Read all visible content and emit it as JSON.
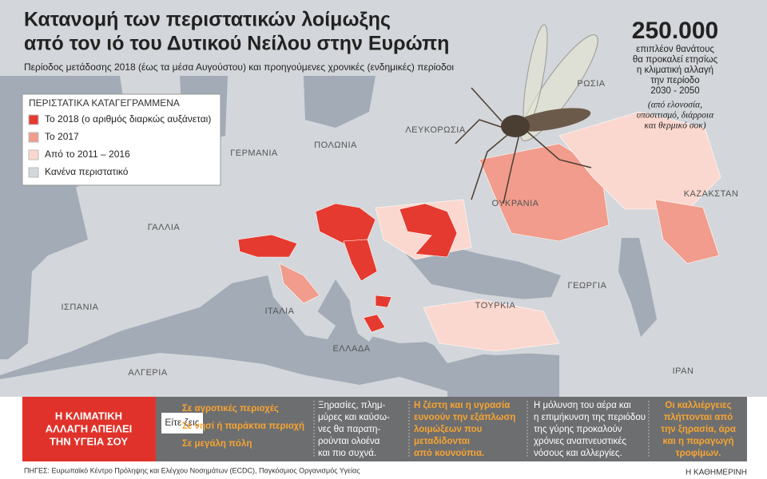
{
  "header": {
    "title": [
      "Κατανομή των περιστατικών λοίμωξης",
      "από τον ιό του Δυτικού Νείλου στην Ευρώπη"
    ],
    "subtitle": "Περίοδος μετάδοσης 2018 (έως τα μέσα Αυγούστου) και προηγούμενες χρονικές (ενδημικές) περίοδοι"
  },
  "legend": {
    "title": "ΠΕΡΙΣΤΑΤΙΚΑ ΚΑΤΑΓΕΓΡΑΜΜΕΝΑ",
    "items": [
      {
        "label": "Το 2018 (ο αριθμός διαρκώς αυξάνεται)",
        "color": "#e53a2f"
      },
      {
        "label": "Το 2017",
        "color": "#f19c8c"
      },
      {
        "label": "Από το 2011 – 2016",
        "color": "#fbd8cf"
      },
      {
        "label": "Κανένα περιστατικό",
        "color": "#d3d6da"
      }
    ]
  },
  "callout": {
    "number": "250.000",
    "lines": [
      "επιπλέον θανάτους",
      "θα προκαλεί ετησίως",
      "η κλιματική αλλαγή",
      "την περίοδο",
      "2030 - 2050"
    ],
    "note": [
      "(από ελονοσία,",
      "υποσιτισμό, διάρροια",
      "και θερμικό σοκ)"
    ]
  },
  "map": {
    "labels": [
      "ΡΩΣΙΑ",
      "ΛΕΥΚΟΡΩΣΙΑ",
      "ΠΟΛΩΝΙΑ",
      "ΓΕΡΜΑΝΙΑ",
      "ΓΑΛΛΙΑ",
      "ΟΥΚΡΑΝΙΑ",
      "ΚΑΖΑΚΣΤΑΝ",
      "ΓΕΩΡΓΙΑ",
      "ΙΣΠΑΝΙΑ",
      "ΙΤΑΛΙΑ",
      "ΤΟΥΡΚΙΑ",
      "ΕΛΛΑΔΑ",
      "ΑΛΓΕΡΙΑ",
      "ΙΡΑΝ"
    ]
  },
  "banner": {
    "headline": [
      "Η ΚΛΙΜΑΤΙΚΗ",
      "ΑΛΛΑΓΗ ΑΠΕΙΛΕΙ",
      "ΤΗΝ ΥΓΕΙΑ ΣΟΥ"
    ],
    "prompt": "Είτε ζεις",
    "options": [
      "Σε αγροτικές περιοχές",
      "Σε νησί ή παράκτια περιοχή",
      "Σε μεγάλη πόλη"
    ],
    "panels": [
      [
        "Ξηρασίες, πλημ-",
        "μύρες και καύσω-",
        "νες θα παρατη-",
        "ρούνται ολοένα",
        "και πιο συχνά."
      ],
      [
        "Η ζέστη και η υγρασία",
        "ευνοούν την εξάπλωση",
        "λοιμώξεων που",
        "μεταδίδονται",
        "από κουνούπια."
      ],
      [
        "Η μόλυνση του αέρα και",
        "η επιμήκυνση της περιόδου",
        "της γύρης προκαλούν",
        "χρόνιες αναπνευστικές",
        "νόσους και αλλεργίες."
      ],
      [
        "Οι καλλιέργειες",
        "πλήττονται από",
        "την ξηρασία, άρα",
        "και η παραγωγή",
        "τροφίμων."
      ]
    ]
  },
  "footer": {
    "sources": "ΠΗΓΕΣ: Ευρωπαϊκό Κέντρο Πρόληψης και Ελέγχου Νοσημάτων (ECDC), Παγκόσμιος Οργανισμός Υγείας",
    "brand": "Η ΚΑΘΗΜΕΡΙΝΗ"
  }
}
